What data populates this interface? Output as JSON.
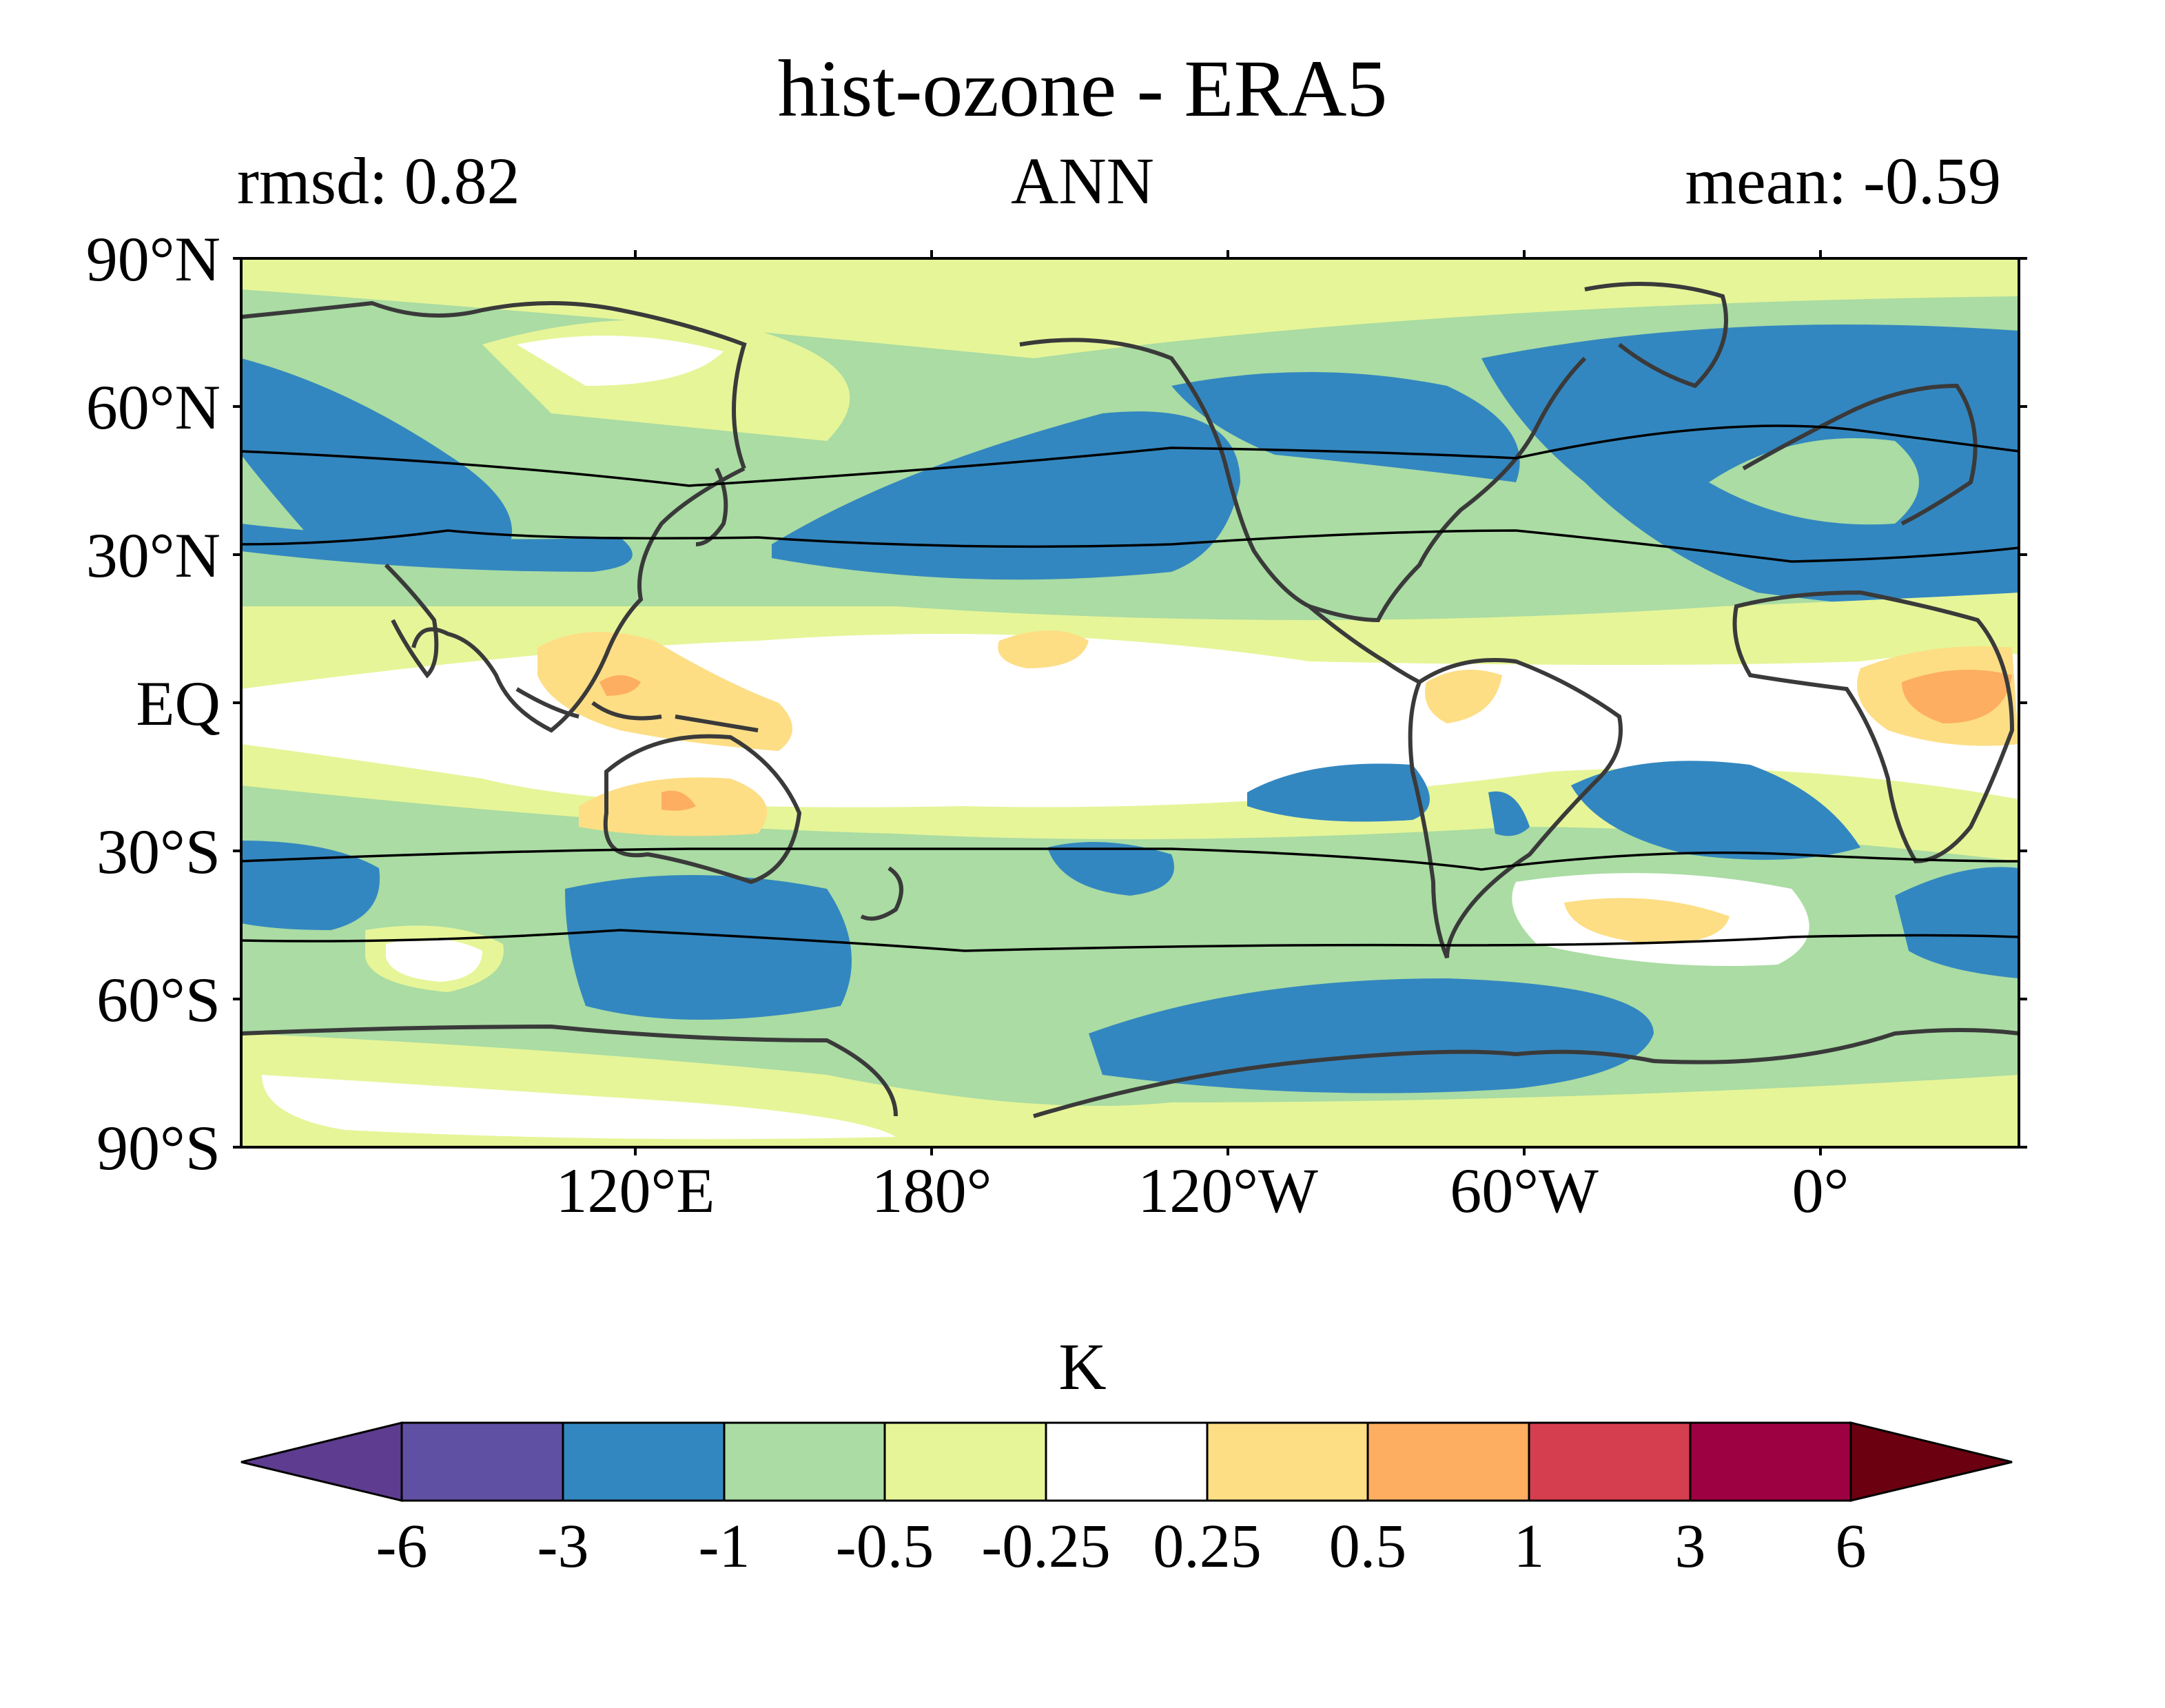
{
  "title": "hist-ozone - ERA5",
  "stats": {
    "rmsd": "rmsd: 0.82",
    "season": "ANN",
    "mean": "mean: -0.59"
  },
  "axes": {
    "lat_labels": [
      "90°N",
      "60°N",
      "30°N",
      "EQ",
      "30°S",
      "60°S",
      "90°S"
    ],
    "lon_labels": [
      "120°E",
      "180°",
      "120°W",
      "60°W",
      "0°"
    ]
  },
  "colorbar": {
    "unit": "K",
    "tick_labels": [
      "-6",
      "-3",
      "-1",
      "-0.5",
      "-0.25",
      "0.25",
      "0.5",
      "1",
      "3",
      "6"
    ],
    "colors": [
      "#5e3c8f",
      "#6050a4",
      "#3387c0",
      "#aadca3",
      "#e6f598",
      "#ffffff",
      "#fdde85",
      "#fdae61",
      "#d53e4f",
      "#9e0142",
      "#6b0010"
    ]
  }
}
